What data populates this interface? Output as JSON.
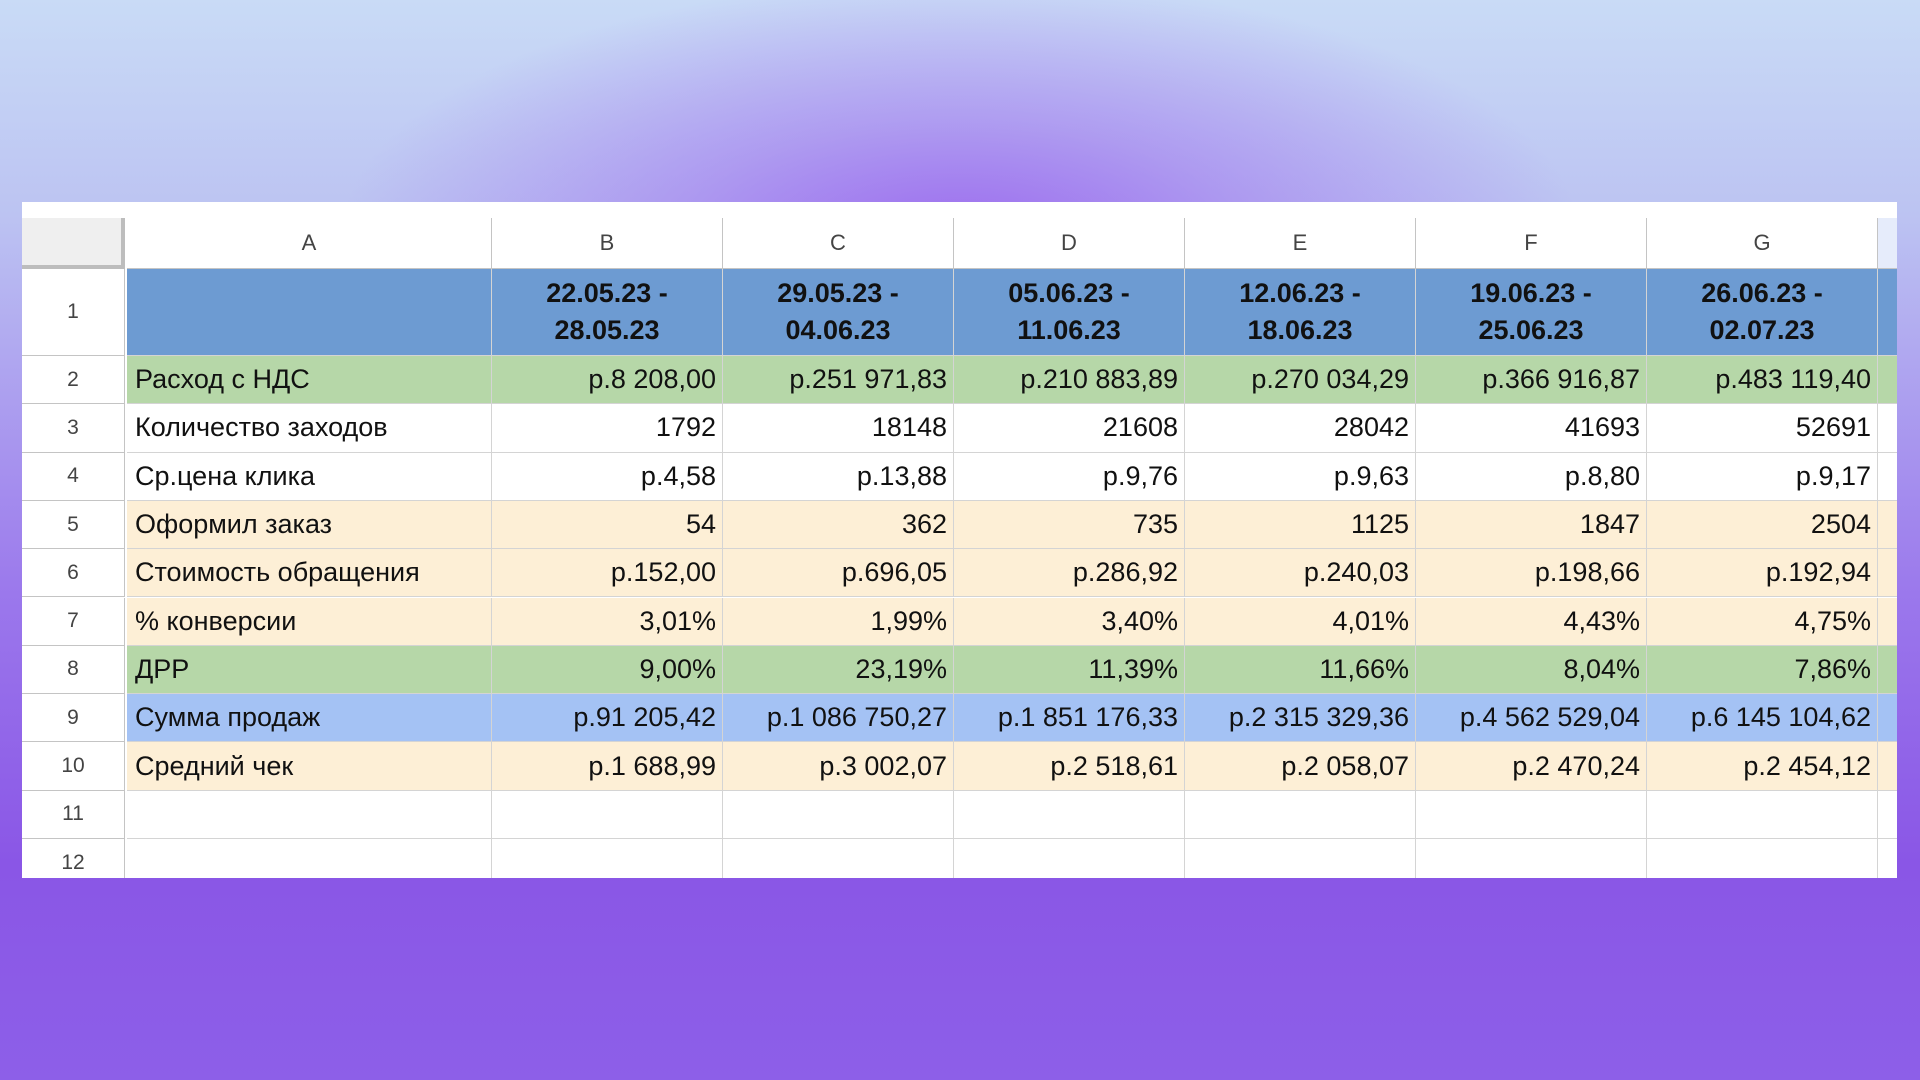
{
  "column_letters": [
    "A",
    "B",
    "C",
    "D",
    "E",
    "F",
    "G"
  ],
  "row_numbers": [
    "1",
    "2",
    "3",
    "4",
    "5",
    "6",
    "7",
    "8",
    "9",
    "10",
    "11",
    "12"
  ],
  "header": [
    "22.05.23 - 28.05.23",
    "29.05.23 - 04.06.23",
    "05.06.23 - 11.06.23",
    "12.06.23 - 18.06.23",
    "19.06.23 - 25.06.23",
    "26.06.23 - 02.07.23"
  ],
  "rows": [
    {
      "label": "Расход с НДС",
      "cells": [
        "р.8 208,00",
        "р.251 971,83",
        "р.210 883,89",
        "р.270 034,29",
        "р.366 916,87",
        "р.483 119,40"
      ]
    },
    {
      "label": "Количество заходов",
      "cells": [
        "1792",
        "18148",
        "21608",
        "28042",
        "41693",
        "52691"
      ]
    },
    {
      "label": "Ср.цена клика",
      "cells": [
        "р.4,58",
        "р.13,88",
        "р.9,76",
        "р.9,63",
        "р.8,80",
        "р.9,17"
      ]
    },
    {
      "label": "Оформил заказ",
      "cells": [
        "54",
        "362",
        "735",
        "1125",
        "1847",
        "2504"
      ]
    },
    {
      "label": "Стоимость обращения",
      "cells": [
        "р.152,00",
        "р.696,05",
        "р.286,92",
        "р.240,03",
        "р.198,66",
        "р.192,94"
      ]
    },
    {
      "label": "% конверсии",
      "cells": [
        "3,01%",
        "1,99%",
        "3,40%",
        "4,01%",
        "4,43%",
        "4,75%"
      ]
    },
    {
      "label": "ДРР",
      "cells": [
        "9,00%",
        "23,19%",
        "11,39%",
        "11,66%",
        "8,04%",
        "7,86%"
      ]
    },
    {
      "label": "Сумма продаж",
      "cells": [
        "р.91 205,42",
        "р.1 086 750,27",
        "р.1 851 176,33",
        "р.2 315 329,36",
        "р.4 562 529,04",
        "р.6 145 104,62"
      ]
    },
    {
      "label": "Средний чек",
      "cells": [
        "р.1 688,99",
        "р.3 002,07",
        "р.2 518,61",
        "р.2 058,07",
        "р.2 470,24",
        "р.2 454,12"
      ]
    }
  ]
}
